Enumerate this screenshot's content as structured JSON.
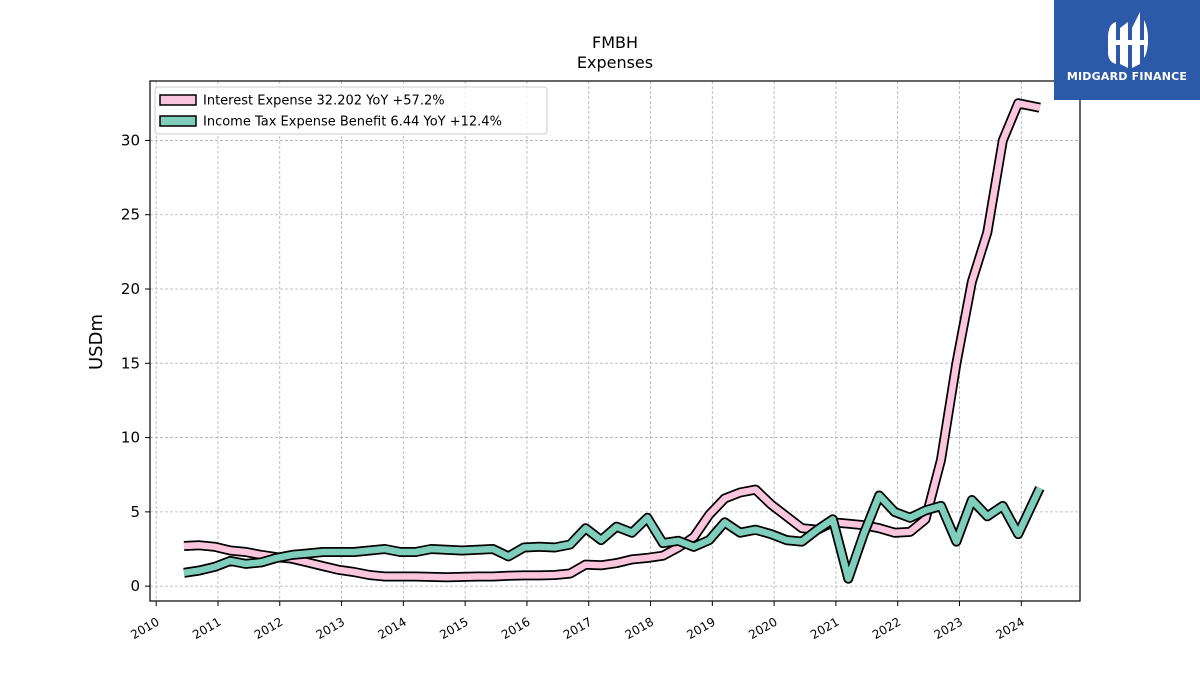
{
  "chart_data": {
    "type": "line",
    "title": "FMBH",
    "subtitle": "Expenses",
    "ylabel": "USDm",
    "xlabel": "",
    "xlim": [
      2009.9,
      2024.95
    ],
    "ylim": [
      -1,
      34
    ],
    "xticks": [
      2010,
      2011,
      2012,
      2013,
      2014,
      2015,
      2016,
      2017,
      2018,
      2019,
      2020,
      2021,
      2022,
      2023,
      2024
    ],
    "xtick_labels": [
      "2010",
      "2011",
      "2012",
      "2013",
      "2014",
      "2015",
      "2016",
      "2017",
      "2018",
      "2019",
      "2020",
      "2021",
      "2022",
      "2023",
      "2024"
    ],
    "yticks": [
      0,
      5,
      10,
      15,
      20,
      25,
      30
    ],
    "ytick_labels": [
      "0",
      "5",
      "10",
      "15",
      "20",
      "25",
      "30"
    ],
    "grid": true,
    "legend_position": "top-left",
    "series": [
      {
        "name": "Interest Expense",
        "legend_label": "Interest Expense  32.202 YoY +57.2%",
        "color": "#f9c6dd",
        "points": [
          [
            2010.45,
            2.7
          ],
          [
            2010.7,
            2.75
          ],
          [
            2010.95,
            2.65
          ],
          [
            2011.2,
            2.4
          ],
          [
            2011.45,
            2.3
          ],
          [
            2011.7,
            2.1
          ],
          [
            2011.95,
            1.95
          ],
          [
            2012.2,
            1.85
          ],
          [
            2012.45,
            1.6
          ],
          [
            2012.7,
            1.35
          ],
          [
            2012.95,
            1.1
          ],
          [
            2013.2,
            0.95
          ],
          [
            2013.45,
            0.75
          ],
          [
            2013.7,
            0.65
          ],
          [
            2013.95,
            0.65
          ],
          [
            2014.2,
            0.65
          ],
          [
            2014.45,
            0.62
          ],
          [
            2014.7,
            0.6
          ],
          [
            2014.95,
            0.62
          ],
          [
            2015.2,
            0.65
          ],
          [
            2015.45,
            0.65
          ],
          [
            2015.7,
            0.7
          ],
          [
            2015.95,
            0.72
          ],
          [
            2016.2,
            0.72
          ],
          [
            2016.45,
            0.75
          ],
          [
            2016.7,
            0.85
          ],
          [
            2016.95,
            1.45
          ],
          [
            2017.2,
            1.4
          ],
          [
            2017.45,
            1.55
          ],
          [
            2017.7,
            1.8
          ],
          [
            2017.95,
            1.9
          ],
          [
            2018.2,
            2.05
          ],
          [
            2018.45,
            2.6
          ],
          [
            2018.7,
            3.3
          ],
          [
            2018.95,
            4.8
          ],
          [
            2019.2,
            5.9
          ],
          [
            2019.45,
            6.3
          ],
          [
            2019.7,
            6.5
          ],
          [
            2019.95,
            5.5
          ],
          [
            2020.2,
            4.7
          ],
          [
            2020.45,
            3.9
          ],
          [
            2020.7,
            3.8
          ],
          [
            2020.95,
            4.3
          ],
          [
            2021.2,
            4.2
          ],
          [
            2021.45,
            4.1
          ],
          [
            2021.7,
            3.9
          ],
          [
            2021.95,
            3.6
          ],
          [
            2022.2,
            3.65
          ],
          [
            2022.45,
            4.5
          ],
          [
            2022.7,
            8.5
          ],
          [
            2022.95,
            15
          ],
          [
            2023.2,
            20.5
          ],
          [
            2023.45,
            23.8
          ],
          [
            2023.7,
            30
          ],
          [
            2023.95,
            32.5
          ],
          [
            2024.3,
            32.2
          ]
        ]
      },
      {
        "name": "Income Tax Expense Benefit",
        "legend_label": "Income Tax Expense Benefit  6.44 YoY +12.4%",
        "color": "#7fcdbb",
        "points": [
          [
            2010.45,
            0.9
          ],
          [
            2010.7,
            1.05
          ],
          [
            2010.95,
            1.3
          ],
          [
            2011.2,
            1.7
          ],
          [
            2011.45,
            1.5
          ],
          [
            2011.7,
            1.6
          ],
          [
            2011.95,
            1.9
          ],
          [
            2012.2,
            2.1
          ],
          [
            2012.45,
            2.2
          ],
          [
            2012.7,
            2.3
          ],
          [
            2012.95,
            2.3
          ],
          [
            2013.2,
            2.3
          ],
          [
            2013.45,
            2.4
          ],
          [
            2013.7,
            2.5
          ],
          [
            2013.95,
            2.3
          ],
          [
            2014.2,
            2.3
          ],
          [
            2014.45,
            2.5
          ],
          [
            2014.7,
            2.45
          ],
          [
            2014.95,
            2.4
          ],
          [
            2015.2,
            2.45
          ],
          [
            2015.45,
            2.5
          ],
          [
            2015.7,
            2.0
          ],
          [
            2015.95,
            2.6
          ],
          [
            2016.2,
            2.65
          ],
          [
            2016.45,
            2.6
          ],
          [
            2016.7,
            2.8
          ],
          [
            2016.95,
            3.9
          ],
          [
            2017.2,
            3.1
          ],
          [
            2017.45,
            4.0
          ],
          [
            2017.7,
            3.6
          ],
          [
            2017.95,
            4.6
          ],
          [
            2018.2,
            2.9
          ],
          [
            2018.45,
            3.05
          ],
          [
            2018.7,
            2.65
          ],
          [
            2018.95,
            3.1
          ],
          [
            2019.2,
            4.3
          ],
          [
            2019.45,
            3.6
          ],
          [
            2019.7,
            3.8
          ],
          [
            2019.95,
            3.5
          ],
          [
            2020.2,
            3.1
          ],
          [
            2020.45,
            3.0
          ],
          [
            2020.7,
            3.8
          ],
          [
            2020.95,
            4.5
          ],
          [
            2021.2,
            0.5
          ],
          [
            2021.45,
            3.5
          ],
          [
            2021.7,
            6.1
          ],
          [
            2021.95,
            5.0
          ],
          [
            2022.2,
            4.6
          ],
          [
            2022.45,
            5.1
          ],
          [
            2022.7,
            5.4
          ],
          [
            2022.95,
            3.0
          ],
          [
            2023.2,
            5.8
          ],
          [
            2023.45,
            4.7
          ],
          [
            2023.7,
            5.4
          ],
          [
            2023.95,
            3.5
          ],
          [
            2024.3,
            6.6
          ]
        ]
      }
    ]
  },
  "logo": {
    "text": "MIDGARD FINANCE",
    "background": "#2c5aa9"
  }
}
